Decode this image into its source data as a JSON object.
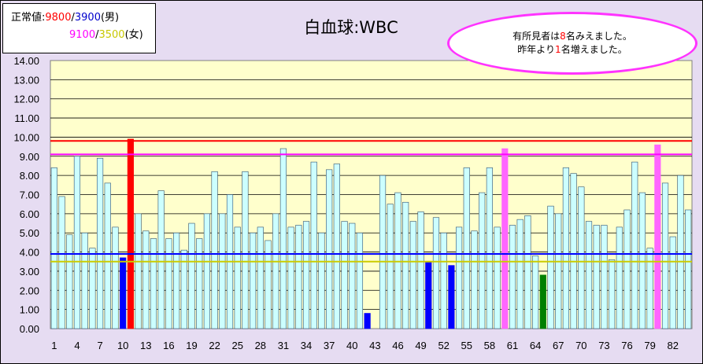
{
  "legend": {
    "label": "正常値:",
    "male_upper": "9800",
    "slash": "/",
    "male_lower": "3900",
    "male_tag": "(男)",
    "female_upper": "9100",
    "female_lower": "3500",
    "female_tag": "(女)"
  },
  "callout": {
    "line1_pre": "有所見者は",
    "line1_num": "8",
    "line1_post": "名みえました。",
    "line2_pre": "昨年より",
    "line2_num": "1",
    "line2_post": "名増えました。"
  },
  "colors": {
    "background": "#e6dcf2",
    "plot_area": "#ffffcc",
    "normal_bar": "#ccffff",
    "low_male_bar": "#0000ff",
    "low_female_bar": "#008000",
    "high_male_bar": "#ff0000",
    "high_female_bar": "#ff66ff",
    "male_upper_line": "#ff0000",
    "male_lower_line": "#0000ff",
    "female_upper_line": "#ff00ff",
    "female_lower_line": "#cccc00"
  },
  "chart_data": {
    "type": "bar",
    "title": "白血球:WBC",
    "ylim": [
      0,
      14
    ],
    "ytick_step": 1,
    "ytick_format": "0.00",
    "xtick_labels": [
      "1",
      "4",
      "7",
      "10",
      "13",
      "16",
      "19",
      "22",
      "25",
      "28",
      "31",
      "34",
      "37",
      "40",
      "43",
      "46",
      "49",
      "52",
      "55",
      "58",
      "61",
      "64",
      "67",
      "70",
      "73",
      "76",
      "79",
      "82"
    ],
    "reference_lines": [
      {
        "name": "male_upper",
        "value": 9.8
      },
      {
        "name": "female_upper",
        "value": 9.1
      },
      {
        "name": "male_lower",
        "value": 3.9
      },
      {
        "name": "female_lower",
        "value": 3.5
      }
    ],
    "values": [
      8.4,
      6.9,
      4.9,
      9.0,
      5.0,
      4.2,
      8.9,
      7.6,
      5.3,
      3.7,
      9.9,
      6.0,
      5.1,
      4.7,
      7.2,
      4.7,
      5.0,
      4.1,
      5.5,
      4.7,
      6.0,
      8.2,
      6.0,
      7.0,
      5.3,
      8.2,
      5.0,
      5.3,
      4.6,
      6.0,
      9.4,
      5.3,
      5.4,
      5.6,
      8.7,
      5.0,
      8.3,
      8.6,
      5.6,
      5.5,
      5.0,
      0.8,
      0,
      8.0,
      6.5,
      7.1,
      6.6,
      5.6,
      6.1,
      3.5,
      5.8,
      5.0,
      3.3,
      5.3,
      8.4,
      5.1,
      7.1,
      8.4,
      5.3,
      9.4,
      5.4,
      5.7,
      5.9,
      3.8,
      2.8,
      6.4,
      6.0,
      8.4,
      8.1,
      7.4,
      5.6,
      5.4,
      5.4,
      3.6,
      5.3,
      6.2,
      8.7,
      7.1,
      4.2,
      9.6,
      7.6,
      4.8,
      8.0,
      6.2
    ],
    "bar_status": [
      "n",
      "n",
      "n",
      "n",
      "n",
      "n",
      "n",
      "n",
      "n",
      "lm",
      "hm",
      "n",
      "n",
      "n",
      "n",
      "n",
      "n",
      "n",
      "n",
      "n",
      "n",
      "n",
      "n",
      "n",
      "n",
      "n",
      "n",
      "n",
      "n",
      "n",
      "n",
      "n",
      "n",
      "n",
      "n",
      "n",
      "n",
      "n",
      "n",
      "n",
      "n",
      "lm",
      "n",
      "n",
      "n",
      "n",
      "n",
      "n",
      "n",
      "lm",
      "n",
      "n",
      "lm",
      "n",
      "n",
      "n",
      "n",
      "n",
      "n",
      "hf",
      "n",
      "n",
      "n",
      "n",
      "lf",
      "n",
      "n",
      "n",
      "n",
      "n",
      "n",
      "n",
      "n",
      "n",
      "n",
      "n",
      "n",
      "n",
      "n",
      "hf",
      "n",
      "n",
      "n",
      "n"
    ]
  }
}
